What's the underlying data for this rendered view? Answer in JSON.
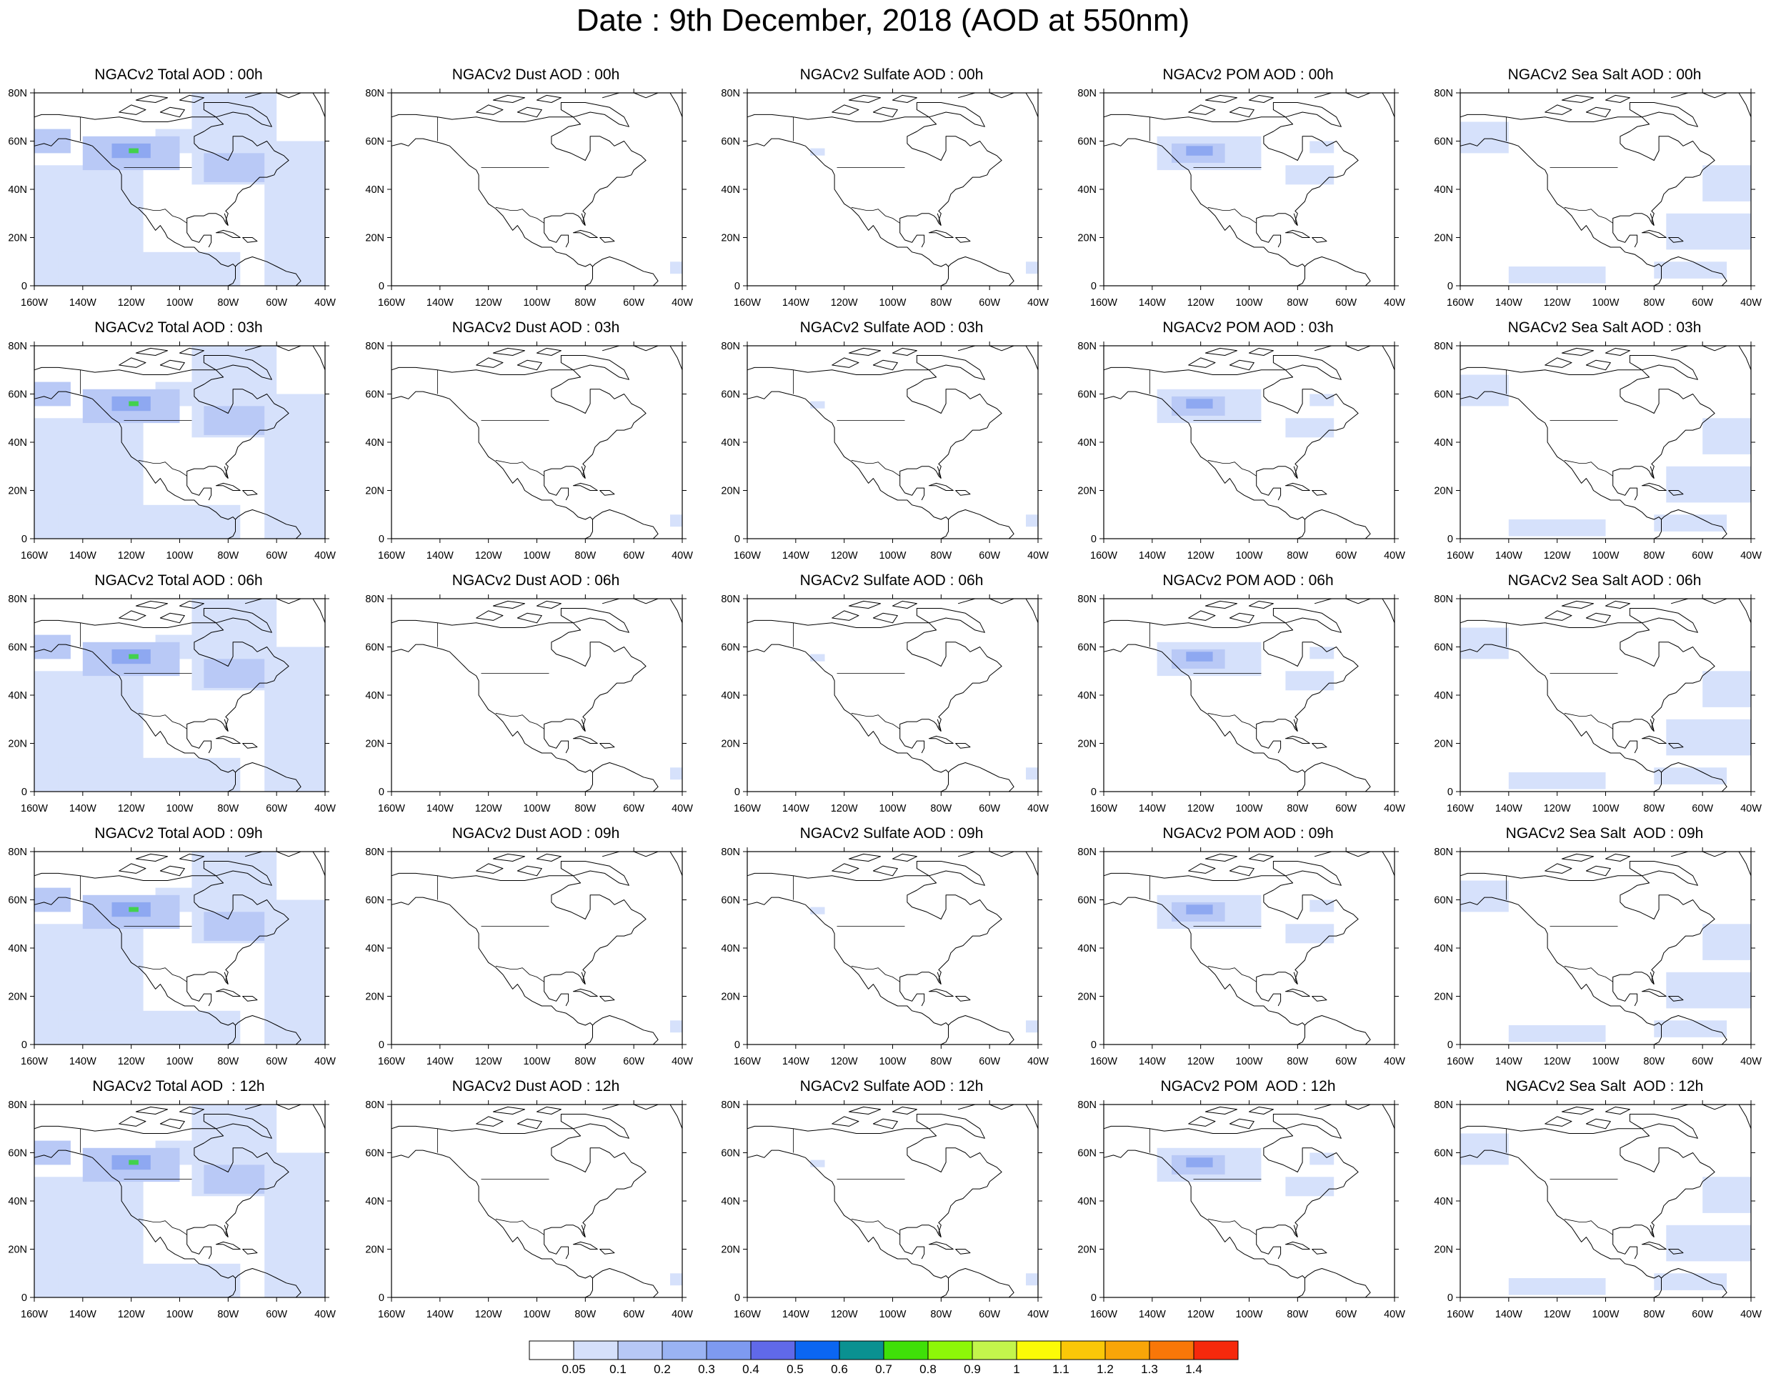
{
  "title": "Date : 9th December, 2018 (AOD at 550nm)",
  "map": {
    "lon_range": [
      -160,
      -40
    ],
    "lat_range": [
      0,
      80
    ],
    "x_ticks": [
      "160W",
      "140W",
      "120W",
      "100W",
      "80W",
      "60W",
      "40W"
    ],
    "y_ticks": [
      "0",
      "20N",
      "40N",
      "60N",
      "80N"
    ]
  },
  "panel_rows": [
    [
      "NGACv2 Total AOD : 00h",
      "NGACv2 Dust AOD : 00h",
      "NGACv2 Sulfate AOD : 00h",
      "NGACv2 POM AOD : 00h",
      "NGACv2 Sea Salt AOD : 00h"
    ],
    [
      "NGACv2 Total AOD : 03h",
      "NGACv2 Dust AOD : 03h",
      "NGACv2 Sulfate AOD : 03h",
      "NGACv2 POM AOD : 03h",
      "NGACv2 Sea Salt AOD : 03h"
    ],
    [
      "NGACv2 Total AOD : 06h",
      "NGACv2 Dust AOD : 06h",
      "NGACv2 Sulfate AOD : 06h",
      "NGACv2 POM AOD : 06h",
      "NGACv2 Sea Salt AOD : 06h"
    ],
    [
      "NGACv2 Total AOD : 09h",
      "NGACv2 Dust AOD : 09h",
      "NGACv2 Sulfate AOD : 09h",
      "NGACv2 POM AOD : 09h",
      "NGACv2 Sea Salt  AOD : 09h"
    ],
    [
      "NGACv2 Total AOD  : 12h",
      "NGACv2 Dust AOD : 12h",
      "NGACv2 Sulfate AOD : 12h",
      "NGACv2 POM  AOD : 12h",
      "NGACv2 Sea Salt  AOD : 12h"
    ]
  ],
  "colorbar": {
    "labels": [
      "0.05",
      "0.1",
      "0.2",
      "0.3",
      "0.4",
      "0.5",
      "0.6",
      "0.7",
      "0.8",
      "0.9",
      "1",
      "1.1",
      "1.2",
      "1.3",
      "1.4"
    ],
    "colors": [
      "#ffffff",
      "#d5e0fb",
      "#b7c8f6",
      "#9ab3f3",
      "#7e9af0",
      "#6069e9",
      "#0b66f2",
      "#0a9191",
      "#3fe008",
      "#8df708",
      "#c3f54c",
      "#fbfb07",
      "#fac708",
      "#f9a508",
      "#f97708",
      "#f6290c"
    ]
  },
  "fields": {
    "color_light": "#d6e1fb",
    "color_medium": "#b9c9f6",
    "color_strong": "#8ea8f1",
    "color_max": "#42d14d",
    "total_low": [
      [
        -160,
        0,
        -115,
        50
      ],
      [
        -150,
        0,
        -75,
        14
      ],
      [
        -95,
        42,
        -60,
        80
      ],
      [
        -65,
        0,
        -40,
        60
      ],
      [
        -110,
        55,
        -70,
        65
      ]
    ],
    "total_mid": [
      [
        -160,
        55,
        -145,
        65
      ],
      [
        -140,
        48,
        -100,
        62
      ],
      [
        -90,
        43,
        -65,
        55
      ]
    ],
    "total_high": [
      [
        -128,
        53,
        -112,
        59
      ]
    ],
    "total_max": [
      [
        -121,
        55,
        -117,
        57
      ]
    ],
    "dust_low": [
      [
        -45,
        5,
        -40,
        10
      ]
    ],
    "sulfate_low": [
      [
        -45,
        5,
        -40,
        10
      ],
      [
        -134,
        54,
        -128,
        57
      ]
    ],
    "pom_low": [
      [
        -138,
        48,
        -95,
        62
      ],
      [
        -85,
        42,
        -65,
        50
      ],
      [
        -75,
        55,
        -65,
        60
      ]
    ],
    "pom_mid": [
      [
        -132,
        51,
        -110,
        59
      ]
    ],
    "pom_high": [
      [
        -126,
        54,
        -115,
        58
      ]
    ],
    "seasalt_low": [
      [
        -160,
        55,
        -140,
        68
      ],
      [
        -75,
        15,
        -40,
        30
      ],
      [
        -60,
        35,
        -40,
        50
      ],
      [
        -140,
        1,
        -100,
        8
      ],
      [
        -80,
        3,
        -50,
        10
      ]
    ]
  }
}
